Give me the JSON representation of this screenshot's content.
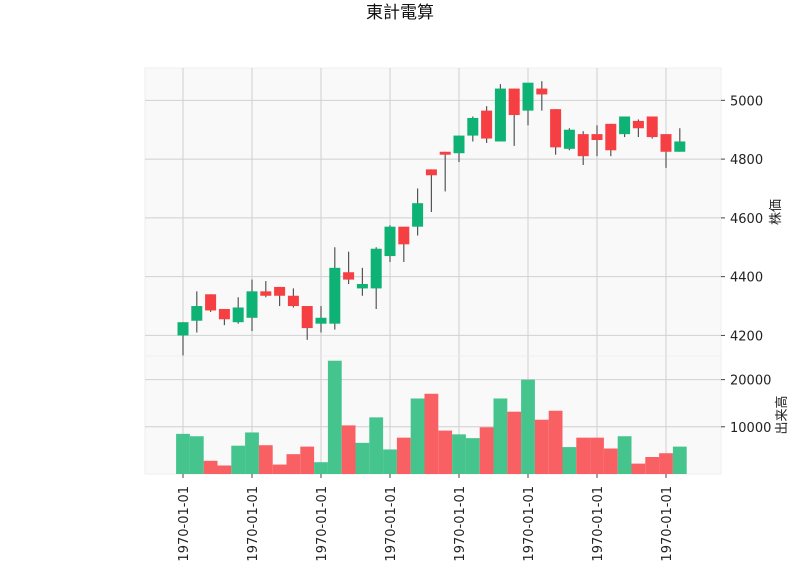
{
  "chart_data": {
    "type": "candlestick",
    "title": "東計電算",
    "price_panel": {
      "ylabel": "株価",
      "yticks": [
        4200,
        4400,
        4600,
        4800,
        5000
      ],
      "ylim": [
        4130,
        5110
      ],
      "grid": true
    },
    "volume_panel": {
      "ylabel": "出来高",
      "yticks": [
        10000,
        20000
      ],
      "yticks_labels": [
        "10000",
        "20000"
      ],
      "ylim": [
        0,
        24000
      ],
      "grid": true
    },
    "x_tick_labels": [
      "1970-01-01",
      "1970-01-01",
      "1970-01-01",
      "1970-01-01",
      "1970-01-01",
      "1970-01-01",
      "1970-01-01",
      "1970-01-01"
    ],
    "colors": {
      "up": "#0eb274",
      "down": "#f53f43",
      "volume_up": "#45c48e",
      "volume_down": "#f96063",
      "wick": "#555555",
      "panel_bg": "#f9f9f9",
      "grid": "#d0d0d0"
    },
    "candles": [
      {
        "o": 4200,
        "h": 4245,
        "l": 4130,
        "c": 4245,
        "v": 8500
      },
      {
        "o": 4250,
        "h": 4350,
        "l": 4210,
        "c": 4300,
        "v": 8000
      },
      {
        "o": 4340,
        "h": 4340,
        "l": 4280,
        "c": 4285,
        "v": 2800
      },
      {
        "o": 4290,
        "h": 4290,
        "l": 4235,
        "c": 4255,
        "v": 1800
      },
      {
        "o": 4245,
        "h": 4330,
        "l": 4240,
        "c": 4295,
        "v": 6000
      },
      {
        "o": 4260,
        "h": 4390,
        "l": 4215,
        "c": 4350,
        "v": 8800
      },
      {
        "o": 4350,
        "h": 4385,
        "l": 4330,
        "c": 4335,
        "v": 6100
      },
      {
        "o": 4365,
        "h": 4365,
        "l": 4300,
        "c": 4335,
        "v": 2000
      },
      {
        "o": 4335,
        "h": 4360,
        "l": 4295,
        "c": 4300,
        "v": 4200
      },
      {
        "o": 4300,
        "h": 4300,
        "l": 4185,
        "c": 4225,
        "v": 5800
      },
      {
        "o": 4240,
        "h": 4300,
        "l": 4210,
        "c": 4260,
        "v": 2500
      },
      {
        "o": 4240,
        "h": 4500,
        "l": 4220,
        "c": 4430,
        "v": 24000
      },
      {
        "o": 4415,
        "h": 4485,
        "l": 4375,
        "c": 4390,
        "v": 10300
      },
      {
        "o": 4360,
        "h": 4430,
        "l": 4335,
        "c": 4375,
        "v": 6600
      },
      {
        "o": 4360,
        "h": 4500,
        "l": 4290,
        "c": 4495,
        "v": 12000
      },
      {
        "o": 4470,
        "h": 4575,
        "l": 4450,
        "c": 4570,
        "v": 5200
      },
      {
        "o": 4570,
        "h": 4570,
        "l": 4450,
        "c": 4510,
        "v": 7700
      },
      {
        "o": 4570,
        "h": 4700,
        "l": 4540,
        "c": 4650,
        "v": 16000
      },
      {
        "o": 4765,
        "h": 4765,
        "l": 4620,
        "c": 4745,
        "v": 17000
      },
      {
        "o": 4825,
        "h": 4825,
        "l": 4690,
        "c": 4815,
        "v": 9200
      },
      {
        "o": 4820,
        "h": 4880,
        "l": 4790,
        "c": 4880,
        "v": 8400
      },
      {
        "o": 4880,
        "h": 4945,
        "l": 4860,
        "c": 4940,
        "v": 7600
      },
      {
        "o": 4965,
        "h": 4980,
        "l": 4855,
        "c": 4870,
        "v": 9900
      },
      {
        "o": 4860,
        "h": 5055,
        "l": 4860,
        "c": 5040,
        "v": 16000
      },
      {
        "o": 5040,
        "h": 5040,
        "l": 4845,
        "c": 4950,
        "v": 13200
      },
      {
        "o": 4965,
        "h": 5055,
        "l": 4915,
        "c": 5060,
        "v": 20000
      },
      {
        "o": 5040,
        "h": 5065,
        "l": 4965,
        "c": 5020,
        "v": 11500
      },
      {
        "o": 4970,
        "h": 4970,
        "l": 4815,
        "c": 4840,
        "v": 13400
      },
      {
        "o": 4835,
        "h": 4905,
        "l": 4830,
        "c": 4900,
        "v": 5700
      },
      {
        "o": 4885,
        "h": 4895,
        "l": 4780,
        "c": 4810,
        "v": 7700
      },
      {
        "o": 4885,
        "h": 4915,
        "l": 4810,
        "c": 4865,
        "v": 7700
      },
      {
        "o": 4920,
        "h": 4920,
        "l": 4810,
        "c": 4830,
        "v": 5400
      },
      {
        "o": 4885,
        "h": 4945,
        "l": 4875,
        "c": 4945,
        "v": 8000
      },
      {
        "o": 4930,
        "h": 4935,
        "l": 4875,
        "c": 4905,
        "v": 2200
      },
      {
        "o": 4945,
        "h": 4945,
        "l": 4870,
        "c": 4875,
        "v": 3600
      },
      {
        "o": 4885,
        "h": 4885,
        "l": 4770,
        "c": 4825,
        "v": 4400
      },
      {
        "o": 4825,
        "h": 4905,
        "l": 4825,
        "c": 4860,
        "v": 5800
      }
    ]
  }
}
